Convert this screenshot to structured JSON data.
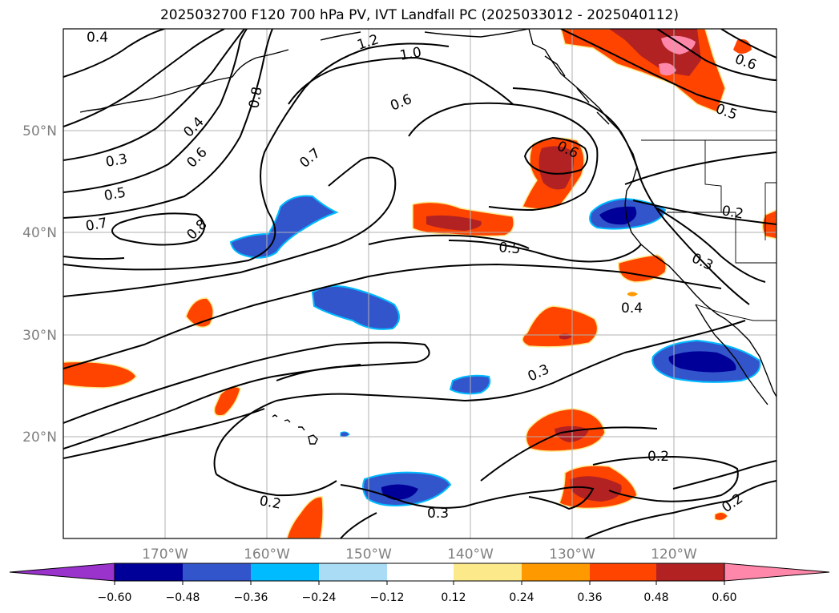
{
  "title": "2025032700 F120 700 hPa PV, IVT Landfall PC (2025033012 - 2025040112)",
  "map": {
    "lon_range": [
      -180,
      -110
    ],
    "lat_range": [
      10,
      60
    ],
    "lon_ticks": [
      "170°W",
      "160°W",
      "150°W",
      "140°W",
      "130°W",
      "120°W"
    ],
    "lat_ticks": [
      "50°N",
      "40°N",
      "30°N",
      "20°N"
    ],
    "gridlines": true,
    "contour_labels": [
      "0.4",
      "1.2",
      "1.0",
      "0.8",
      "0.6",
      "0.4",
      "0.6",
      "0.3",
      "0.5",
      "0.7",
      "0.8",
      "0.7",
      "0.6",
      "0.5",
      "0.2",
      "0.3",
      "0.4",
      "0.3",
      "0.2",
      "0.2",
      "0.3",
      "0.2",
      "0.6",
      "0.5"
    ]
  },
  "colorbar": {
    "ticks": [
      "−0.60",
      "−0.48",
      "−0.36",
      "−0.24",
      "−0.12",
      "0.12",
      "0.24",
      "0.36",
      "0.48",
      "0.60"
    ],
    "colors": [
      "#9933cc",
      "#000099",
      "#3355cc",
      "#00bbff",
      "#aaddf5",
      "#ffffff",
      "#fce98a",
      "#ff9900",
      "#ff4400",
      "#b22222",
      "#ff88aa"
    ]
  },
  "fill_colors": {
    "neg_light": "#aaddf5",
    "neg_mid": "#00bbff",
    "neg_strong": "#3355cc",
    "neg_max": "#000099",
    "pos_light": "#fce98a",
    "pos_mid": "#ff9900",
    "pos_strong": "#ff4400",
    "pos_high": "#b22222",
    "pos_max": "#ff88aa"
  }
}
